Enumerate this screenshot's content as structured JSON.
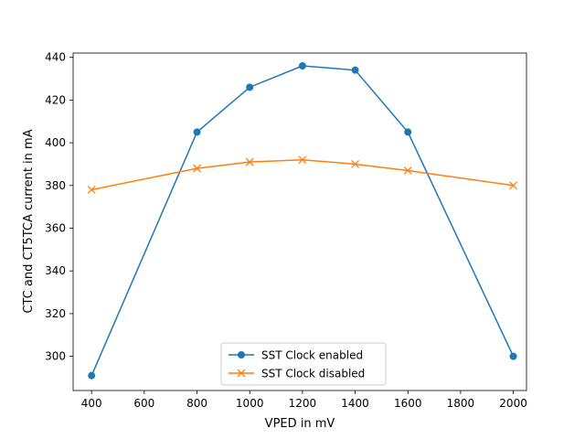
{
  "chart_data": {
    "type": "line",
    "title": "",
    "xlabel": "VPED in mV",
    "ylabel": "CTC and CT5TCA current in mA",
    "xlim": [
      330,
      2050
    ],
    "ylim": [
      284,
      442
    ],
    "xticks": [
      400,
      600,
      800,
      1000,
      1200,
      1400,
      1600,
      1800,
      2000
    ],
    "yticks": [
      300,
      320,
      340,
      360,
      380,
      400,
      420,
      440
    ],
    "grid": false,
    "legend_position": "lower center",
    "series": [
      {
        "name": "SST Clock enabled",
        "color": "#1f77b4",
        "marker": "circle",
        "x": [
          400,
          800,
          1000,
          1200,
          1400,
          1600,
          2000
        ],
        "y": [
          291,
          405,
          426,
          436,
          434,
          405,
          300
        ]
      },
      {
        "name": "SST Clock disabled",
        "color": "#ff7f0e",
        "marker": "x",
        "x": [
          400,
          800,
          1000,
          1200,
          1400,
          1600,
          2000
        ],
        "y": [
          378,
          388,
          391,
          392,
          390,
          387,
          380
        ]
      }
    ]
  }
}
